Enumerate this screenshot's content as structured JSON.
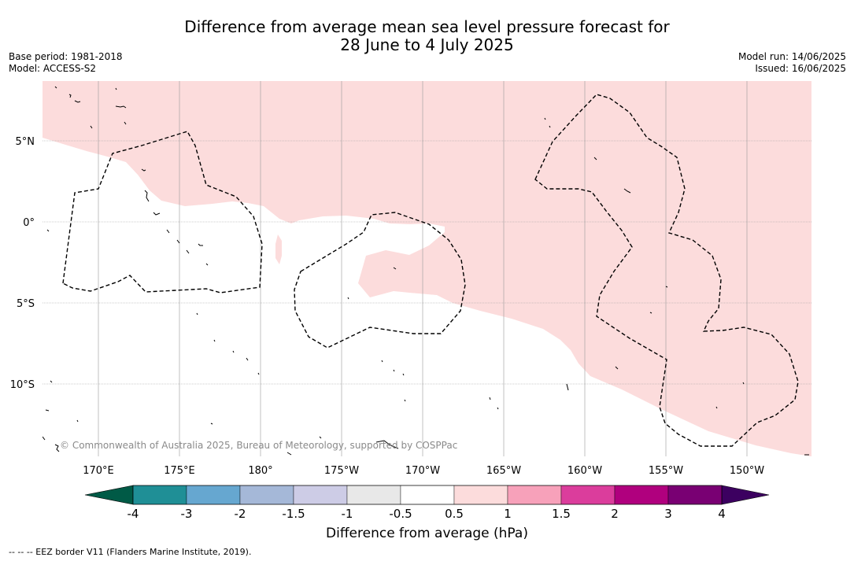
{
  "title": {
    "line1": "Difference from average mean sea level pressure forecast for",
    "line2": "28 June to 4 July 2025"
  },
  "meta_left": {
    "base_period": "Base period: 1981-2018",
    "model": "Model: ACCESS-S2"
  },
  "meta_right": {
    "model_run": "Model run: 14/06/2025",
    "issued": "Issued: 16/06/2025"
  },
  "map": {
    "lat_labels": [
      "5°N",
      "0°",
      "5°S",
      "10°S"
    ],
    "lon_labels": [
      "170°E",
      "175°E",
      "180°",
      "175°W",
      "170°W",
      "165°W",
      "160°W",
      "155°W",
      "150°W"
    ],
    "copyright": "© Commonwealth of Australia 2025, Bureau of Meteorology, supported by COSPPac",
    "colors": {
      "anomaly_fill": "#fcdcdc",
      "background": "#ffffff",
      "eez": "#000000",
      "grid": "#999999"
    }
  },
  "colorbar": {
    "title": "Difference from average (hPa)",
    "tick_labels": [
      "-4",
      "-3",
      "-2",
      "-1.5",
      "-1",
      "-0.5",
      "0.5",
      "1",
      "1.5",
      "2",
      "3",
      "4"
    ],
    "low_extend_color": "#005a46",
    "high_extend_color": "#3c0060",
    "bins": [
      "#1f8f96",
      "#66a7d0",
      "#a5b8d8",
      "#cdcce6",
      "#e8e8e8",
      "#ffffff",
      "#fcdcdc",
      "#f7a1ba",
      "#db3d9c",
      "#b0007e",
      "#790073"
    ]
  },
  "footnote": "--  --  -- EEZ border V11 (Flanders Marine Institute, 2019)."
}
